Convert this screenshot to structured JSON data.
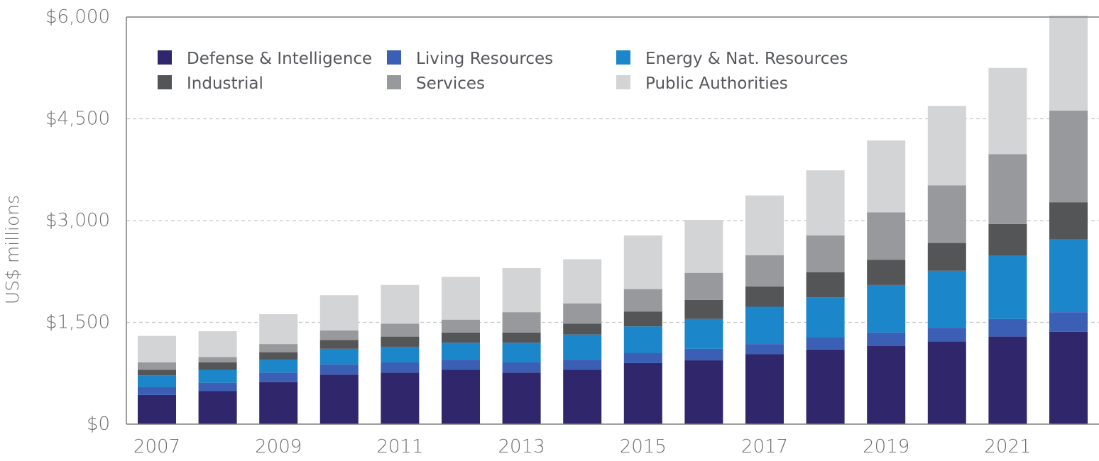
{
  "chart_data": {
    "type": "bar",
    "stacked": true,
    "ylabel": "US$ millions",
    "xlabel": "",
    "ylim": [
      0,
      6000
    ],
    "y_ticks": [
      "$0",
      "$1,500",
      "$3,000",
      "$4,500",
      "$6,000"
    ],
    "y_tick_values": [
      0,
      1500,
      3000,
      4500,
      6000
    ],
    "x_tick_labels": [
      "2007",
      "2009",
      "2011",
      "2013",
      "2015",
      "2017",
      "2019",
      "2021"
    ],
    "categories": [
      "2007",
      "2008",
      "2009",
      "2010",
      "2011",
      "2012",
      "2013",
      "2014",
      "2015",
      "2016",
      "2017",
      "2018",
      "2019",
      "2020",
      "2021",
      "2022"
    ],
    "grid": "horizontal dashed",
    "legend_position": "top-left",
    "series": [
      {
        "name": "Defense & Intelligence",
        "color": "#30266b",
        "values": [
          430,
          490,
          620,
          730,
          760,
          800,
          760,
          800,
          900,
          940,
          1030,
          1100,
          1150,
          1220,
          1290,
          1360
        ]
      },
      {
        "name": "Living Resources",
        "color": "#3a5fb5",
        "values": [
          120,
          120,
          140,
          150,
          150,
          150,
          150,
          150,
          150,
          170,
          150,
          180,
          200,
          200,
          260,
          290
        ]
      },
      {
        "name": "Energy & Nat. Resources",
        "color": "#1b86c9",
        "values": [
          170,
          190,
          190,
          230,
          230,
          250,
          290,
          370,
          390,
          440,
          550,
          590,
          700,
          840,
          930,
          1070
        ]
      },
      {
        "name": "Industrial",
        "color": "#545557",
        "values": [
          80,
          110,
          110,
          130,
          150,
          150,
          150,
          160,
          220,
          280,
          300,
          370,
          370,
          410,
          470,
          550
        ]
      },
      {
        "name": "Services",
        "color": "#98999c",
        "values": [
          110,
          80,
          120,
          140,
          190,
          190,
          300,
          300,
          330,
          400,
          460,
          540,
          700,
          850,
          1030,
          1350
        ]
      },
      {
        "name": "Public Authorities",
        "color": "#d3d4d6",
        "values": [
          390,
          380,
          440,
          520,
          570,
          630,
          650,
          650,
          790,
          780,
          880,
          960,
          1060,
          1170,
          1270,
          1400
        ]
      }
    ]
  }
}
